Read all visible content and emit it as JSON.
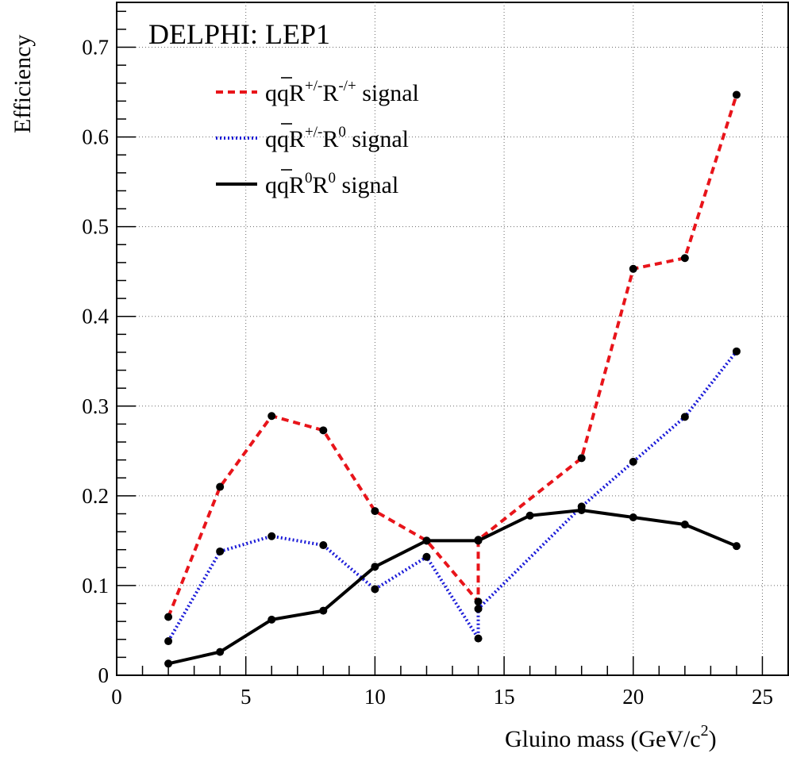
{
  "chart_data": {
    "type": "line",
    "title": "DELPHI: LEP1",
    "xlabel": "Gluino mass (GeV/c²)",
    "ylabel": "Efficiency",
    "xlim": [
      0,
      26
    ],
    "ylim": [
      0,
      0.75
    ],
    "x_ticks": [
      0,
      5,
      10,
      15,
      20,
      25
    ],
    "x_tick_labels": [
      "0",
      "5",
      "10",
      "15",
      "20",
      "25"
    ],
    "y_ticks": [
      0,
      0.1,
      0.2,
      0.3,
      0.4,
      0.5,
      0.6,
      0.7
    ],
    "y_tick_labels": [
      "0",
      "0.1",
      "0.2",
      "0.3",
      "0.4",
      "0.5",
      "0.6",
      "0.7"
    ],
    "grid": true,
    "legend_position": "top-left",
    "series": [
      {
        "name": "qq̄R+/-R-/+ signal",
        "color": "#e8141a",
        "style": "dashed",
        "points": [
          [
            2,
            0.065
          ],
          [
            4,
            0.21
          ],
          [
            6,
            0.289
          ],
          [
            8,
            0.273
          ],
          [
            10,
            0.183
          ],
          [
            12,
            0.15
          ],
          [
            14,
            0.082
          ],
          [
            14,
            0.151
          ],
          [
            18,
            0.242
          ],
          [
            20,
            0.453
          ],
          [
            22,
            0.465
          ],
          [
            24,
            0.647
          ]
        ]
      },
      {
        "name": "qq̄R+/-R0 signal",
        "color": "#1a1ad8",
        "style": "dotted",
        "points": [
          [
            2,
            0.038
          ],
          [
            4,
            0.138
          ],
          [
            6,
            0.155
          ],
          [
            8,
            0.145
          ],
          [
            10,
            0.096
          ],
          [
            12,
            0.132
          ],
          [
            14,
            0.041
          ],
          [
            14,
            0.074
          ],
          [
            18,
            0.188
          ],
          [
            20,
            0.238
          ],
          [
            22,
            0.288
          ],
          [
            24,
            0.361
          ]
        ]
      },
      {
        "name": "qq̄R0R0 signal",
        "color": "#000000",
        "style": "solid",
        "points": [
          [
            2,
            0.013
          ],
          [
            4,
            0.026
          ],
          [
            6,
            0.062
          ],
          [
            8,
            0.072
          ],
          [
            10,
            0.121
          ],
          [
            12,
            0.15
          ],
          [
            14,
            0.15
          ],
          [
            16,
            0.178
          ],
          [
            18,
            0.184
          ],
          [
            20,
            0.176
          ],
          [
            22,
            0.168
          ],
          [
            24,
            0.144
          ]
        ]
      }
    ]
  }
}
